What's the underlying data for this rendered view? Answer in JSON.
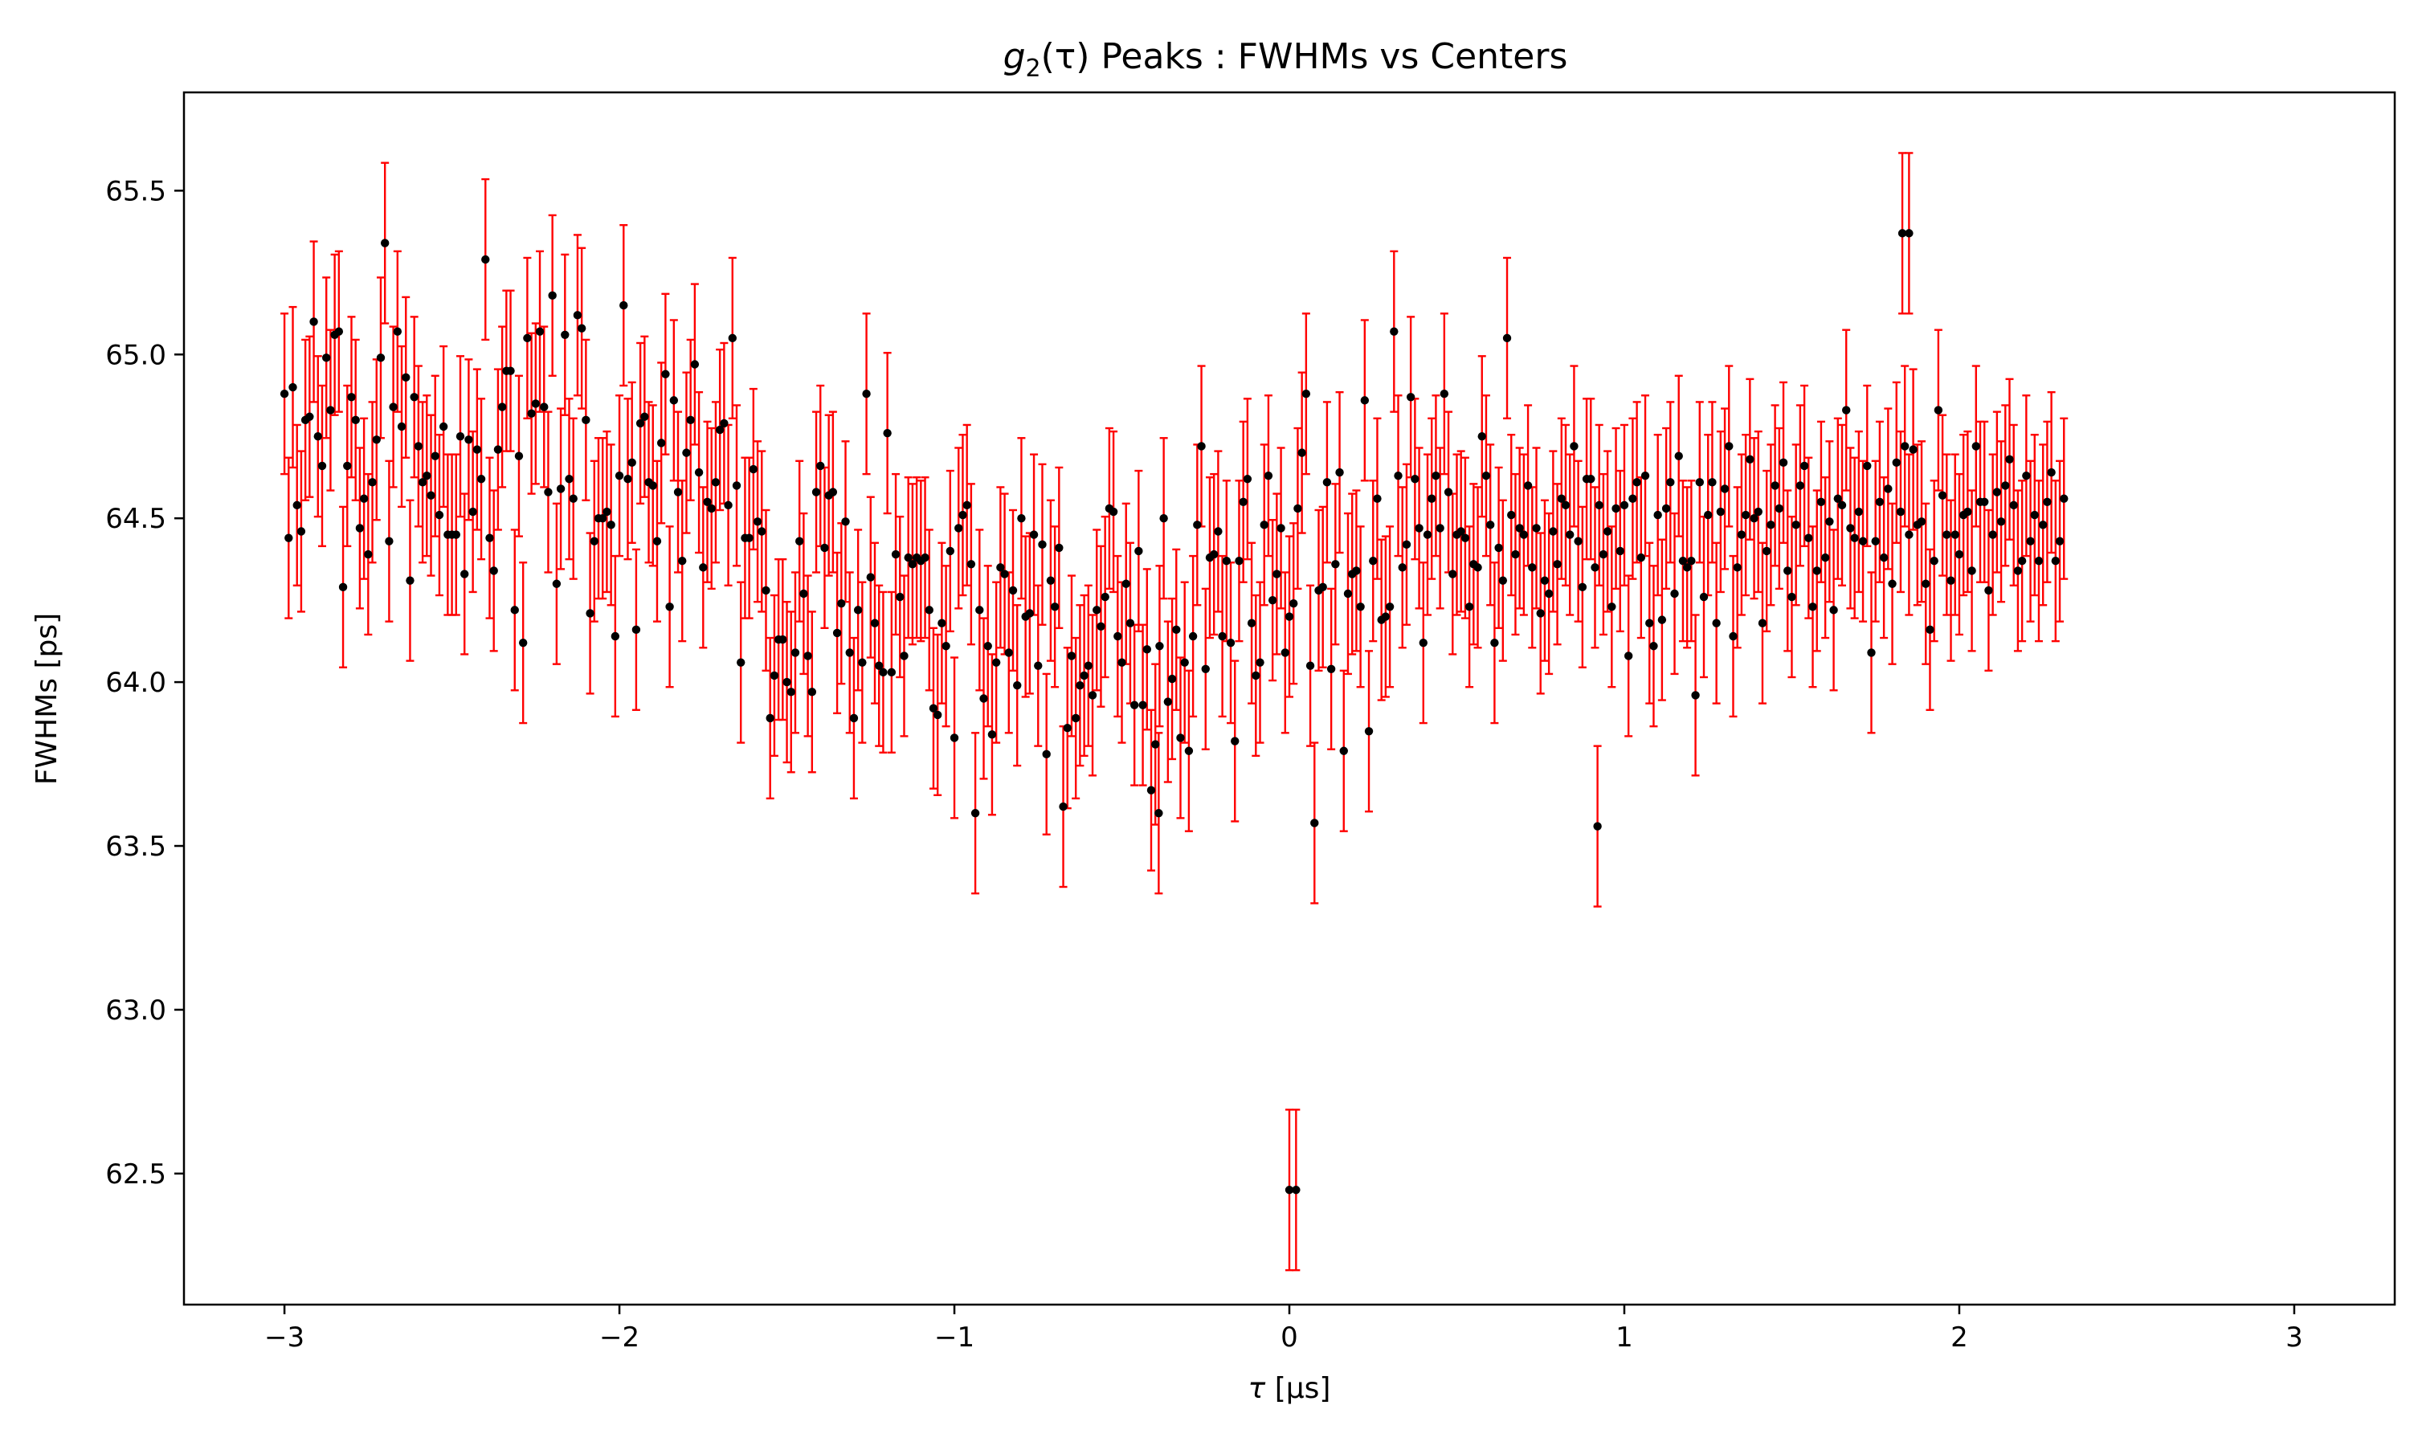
{
  "chart_data": {
    "type": "scatter",
    "title": "g2(τ) Peaks : FWHMs vs Centers",
    "title_parts": {
      "symbol": "g",
      "subscript": "2",
      "argument": "(τ)",
      "rest": " Peaks : FWHMs vs Centers"
    },
    "xlabel": "τ [μs]",
    "xlabel_parts": {
      "symbol": "τ",
      "unit": "[μs]"
    },
    "ylabel": "FWHMs [ps]",
    "xlim": [
      -3.3,
      3.3
    ],
    "ylim": [
      62.1,
      65.8
    ],
    "xticks": [
      -3,
      -2,
      -1,
      0,
      1,
      2,
      3
    ],
    "xtick_labels": [
      "−3",
      "−2",
      "−1",
      "0",
      "1",
      "2",
      "3"
    ],
    "yticks": [
      62.5,
      63.0,
      63.5,
      64.0,
      64.5,
      65.0,
      65.5
    ],
    "ytick_labels": [
      "62.5",
      "63.0",
      "63.5",
      "64.0",
      "64.5",
      "65.0",
      "65.5"
    ],
    "grid": false,
    "legend": "none",
    "marker_color": "#000000",
    "errorbar_color": "#ff0000",
    "error_halfwidth": 0.245,
    "series": [
      {
        "x_start": -3.0,
        "x_step": 0.0125,
        "y": [
          64.88,
          64.44,
          64.9,
          64.54,
          64.46,
          64.8,
          64.81,
          65.1,
          64.75,
          64.66,
          64.99,
          64.83,
          65.06,
          65.07,
          64.29,
          64.66,
          64.87,
          64.8,
          64.47,
          64.56,
          64.39,
          64.61,
          64.74,
          64.99,
          65.34,
          64.43,
          64.84,
          65.07,
          64.78,
          64.93,
          64.31,
          64.87,
          64.72,
          64.61,
          64.63,
          64.57,
          64.69,
          64.51,
          64.78,
          64.45,
          64.45,
          64.45,
          64.75,
          64.33,
          64.74,
          64.52,
          64.71,
          64.62,
          65.29,
          64.44,
          64.34,
          64.71,
          64.84,
          64.95,
          64.95,
          64.22,
          64.69,
          64.12,
          65.05,
          64.82,
          64.85,
          65.07,
          64.84,
          64.58,
          65.18,
          64.3,
          64.59,
          65.06,
          64.62,
          64.56,
          65.12,
          65.08,
          64.8,
          64.21,
          64.43,
          64.5,
          64.5,
          64.52,
          64.48,
          64.14,
          64.63,
          65.15,
          64.62,
          64.67,
          64.16,
          64.79,
          64.81,
          64.61,
          64.6,
          64.43,
          64.73,
          64.94,
          64.23,
          64.86,
          64.58,
          64.37,
          64.7,
          64.8,
          64.97,
          64.64,
          64.35,
          64.55,
          64.53,
          64.61,
          64.77,
          64.79,
          64.54,
          65.05,
          64.6,
          64.06,
          64.44,
          64.44,
          64.65,
          64.49,
          64.46,
          64.28,
          63.89,
          64.02,
          64.13,
          64.13,
          64.0,
          63.97,
          64.09,
          64.43,
          64.27,
          64.08,
          63.97,
          64.58,
          64.66,
          64.41,
          64.57,
          64.58,
          64.15,
          64.24,
          64.49,
          64.09,
          63.89,
          64.22,
          64.06,
          64.88,
          64.32,
          64.18,
          64.05,
          64.03,
          64.76,
          64.03,
          64.39,
          64.26,
          64.08,
          64.38,
          64.36,
          64.38,
          64.37,
          64.38,
          64.22,
          63.92,
          63.9,
          64.18,
          64.11,
          64.4,
          63.83,
          64.47,
          64.51,
          64.54,
          64.36,
          63.6,
          64.22,
          63.95,
          64.11,
          63.84,
          64.06,
          64.35,
          64.33,
          64.09,
          64.28,
          63.99,
          64.5,
          64.2,
          64.21,
          64.45,
          64.05,
          64.42,
          63.78,
          64.31,
          64.23,
          64.41,
          63.62,
          63.86,
          64.08,
          63.89,
          63.99,
          64.02,
          64.05,
          63.96,
          64.22,
          64.17,
          64.26,
          64.53,
          64.52,
          64.14,
          64.06,
          64.3,
          64.18,
          63.93,
          64.4,
          63.93,
          64.1,
          63.67,
          63.81,
          64.11,
          64.5,
          63.94,
          64.01,
          64.16,
          63.83,
          64.06,
          63.79,
          64.14,
          64.48,
          64.72,
          64.04,
          64.38,
          64.39,
          64.46,
          64.14,
          64.37,
          64.12,
          63.82,
          64.37,
          64.55,
          64.62,
          64.18,
          64.02,
          64.06,
          64.48,
          64.63,
          64.25,
          64.33,
          64.47,
          64.09,
          64.2,
          64.24,
          64.53,
          64.7,
          64.88,
          64.05,
          63.57,
          64.28,
          64.29,
          64.61,
          64.04,
          64.36,
          64.64,
          63.79,
          64.27,
          64.33,
          64.34,
          64.23,
          64.86,
          63.85,
          64.37,
          64.56,
          64.19,
          64.2,
          64.23,
          65.07,
          64.63,
          64.35,
          64.42,
          64.87,
          64.62,
          64.47,
          64.12,
          64.45,
          64.56,
          64.63,
          64.47,
          64.88,
          64.58,
          64.33,
          64.45,
          64.46,
          64.44,
          64.23,
          64.36,
          64.35,
          64.75,
          64.63,
          64.48,
          64.12,
          64.41,
          64.31,
          65.05,
          64.51,
          64.39,
          64.47,
          64.45,
          64.6,
          64.35,
          64.47,
          64.21,
          64.31,
          64.27,
          64.46,
          64.36,
          64.56,
          64.54,
          64.45,
          64.72,
          64.43,
          64.29,
          64.62,
          64.62,
          64.35,
          64.54,
          64.39,
          64.46,
          64.23,
          64.53,
          64.4,
          64.54,
          64.08,
          64.56,
          64.61,
          64.38,
          64.63,
          64.18,
          64.11,
          64.51,
          64.19,
          64.53,
          64.61,
          64.27,
          64.69,
          64.37,
          64.35,
          64.37,
          63.96,
          64.61,
          64.26,
          64.51,
          64.61,
          64.18,
          64.52,
          64.59,
          64.72,
          64.14,
          64.35,
          64.45,
          64.51,
          64.68,
          64.5,
          64.52,
          64.18,
          64.4,
          64.48,
          64.6,
          64.53,
          64.67,
          64.34,
          64.26,
          64.48,
          64.6,
          64.66,
          64.44,
          64.23,
          64.34,
          64.55,
          64.38,
          64.49,
          64.22,
          64.56,
          64.54,
          64.83,
          64.47,
          64.44,
          64.52,
          64.43,
          64.66,
          64.09,
          64.43,
          64.55,
          64.38,
          64.59,
          64.3,
          64.67,
          64.52,
          64.72,
          64.45,
          64.71,
          64.48,
          64.49,
          64.3,
          64.16,
          64.37,
          64.83,
          64.57,
          64.45,
          64.31,
          64.45,
          64.39,
          64.51,
          64.52,
          64.34,
          64.72,
          64.55,
          64.55,
          64.28,
          64.45,
          64.58,
          64.49,
          64.6,
          64.68,
          64.54,
          64.34,
          64.37,
          64.63,
          64.43,
          64.51,
          64.37,
          64.48,
          64.55,
          64.64,
          64.37,
          64.43,
          64.56
        ]
      }
    ],
    "highlight_points": [
      {
        "x": -0.39,
        "y": 63.6
      },
      {
        "x": 0.0,
        "y": 62.45
      },
      {
        "x": 0.02,
        "y": 62.45
      },
      {
        "x": 0.92,
        "y": 63.56
      },
      {
        "x": 1.83,
        "y": 65.37
      },
      {
        "x": 1.85,
        "y": 65.37
      }
    ]
  }
}
